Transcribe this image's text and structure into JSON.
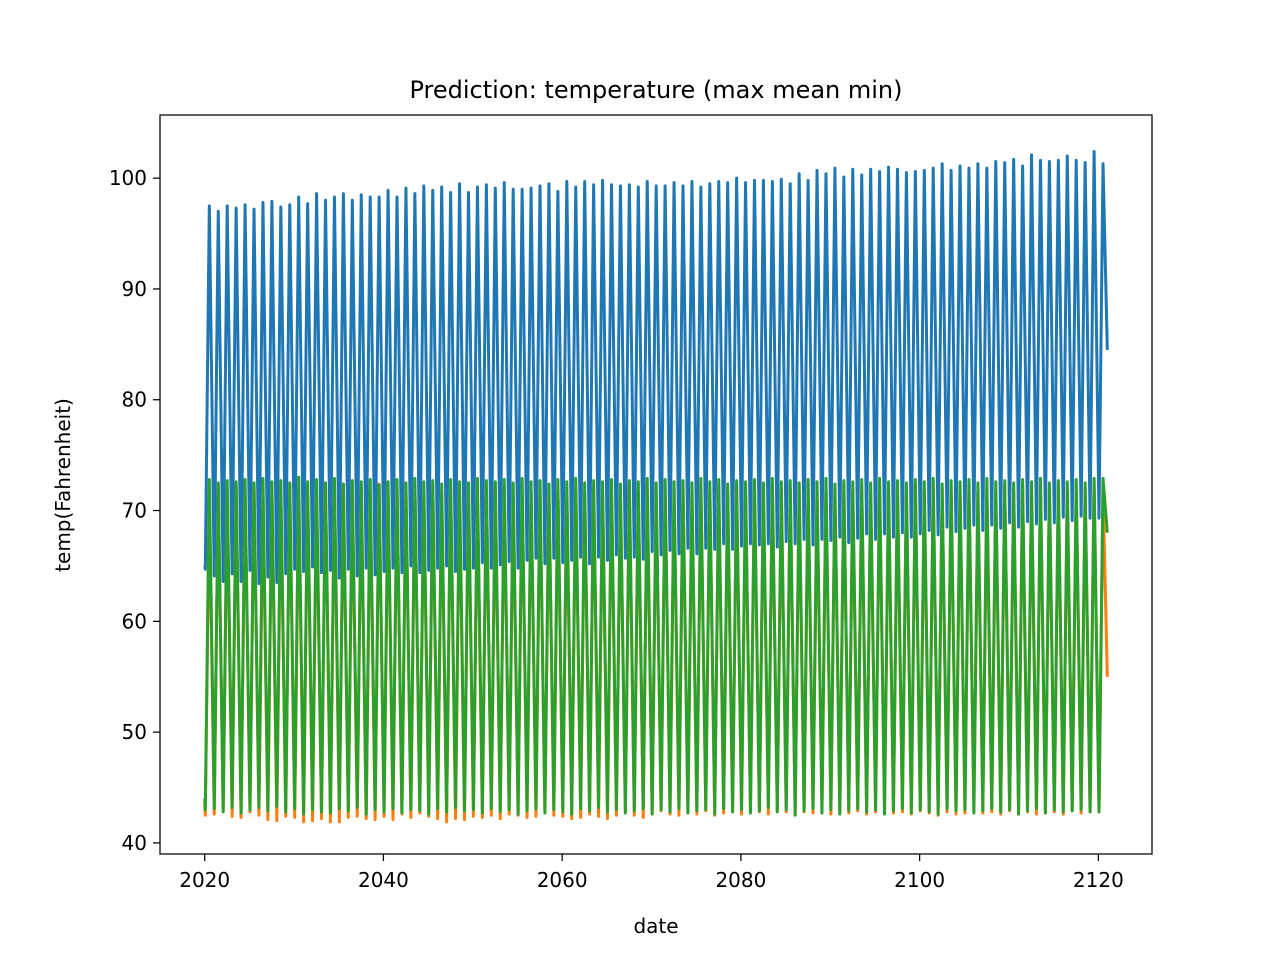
{
  "chart_data": {
    "type": "line",
    "title": "Prediction: temperature (max mean min)",
    "xlabel": "date",
    "ylabel": "temp(Fahrenheit)",
    "xlim": [
      2015,
      2126
    ],
    "ylim": [
      39,
      105.7
    ],
    "xticks": [
      2020,
      2040,
      2060,
      2080,
      2100,
      2120
    ],
    "yticks": [
      40,
      50,
      60,
      70,
      80,
      90,
      100
    ],
    "grid": false,
    "legend": "none",
    "x_range": [
      2020.0,
      2121.0
    ],
    "cycle_period_years": 1,
    "series": [
      {
        "color": "#1f77b4",
        "start_value": 65.0,
        "end_value": 84.5,
        "annual_peaks": [
          97.5,
          97.0,
          97.5,
          97.3,
          97.6,
          97.2,
          97.8,
          97.9,
          97.4,
          97.6,
          98.3,
          97.7,
          98.6,
          98.0,
          98.3,
          98.6,
          98.0,
          98.5,
          98.3,
          98.3,
          98.9,
          98.3,
          99.1,
          98.6,
          99.3,
          98.9,
          99.2,
          98.7,
          99.5,
          98.7,
          99.2,
          99.4,
          99.1,
          99.6,
          99.0,
          99.0,
          99.1,
          99.3,
          99.5,
          98.8,
          99.7,
          99.2,
          99.7,
          99.4,
          99.8,
          99.4,
          99.3,
          99.4,
          99.2,
          99.7,
          99.3,
          99.3,
          99.6,
          99.3,
          99.7,
          99.2,
          99.5,
          99.7,
          99.6,
          100.0,
          99.6,
          99.8,
          99.8,
          99.7,
          99.9,
          99.5,
          100.4,
          99.8,
          100.7,
          100.4,
          100.9,
          100.1,
          100.8,
          100.3,
          100.8,
          100.6,
          101.0,
          100.8,
          100.5,
          100.6,
          100.7,
          100.9,
          101.3,
          100.7,
          101.1,
          100.9,
          101.3,
          100.9,
          101.5,
          101.4,
          101.7,
          101.1,
          102.1,
          101.6,
          101.5,
          101.6,
          102.0,
          101.6,
          101.4,
          102.4,
          101.3
        ],
        "annual_troughs": [
          64.7,
          64.1,
          63.6,
          64.3,
          63.6,
          64.6,
          63.4,
          64.0,
          63.5,
          64.3,
          64.7,
          64.5,
          64.9,
          64.4,
          64.6,
          63.9,
          64.7,
          64.1,
          64.8,
          64.2,
          64.5,
          64.8,
          64.4,
          65.0,
          64.4,
          64.6,
          64.8,
          65.0,
          64.5,
          64.7,
          64.8,
          65.3,
          64.8,
          65.1,
          65.4,
          64.8,
          65.5,
          65.7,
          65.2,
          65.7,
          65.3,
          65.5,
          65.8,
          65.2,
          65.8,
          65.5,
          66.0,
          65.7,
          65.8,
          65.6,
          66.3,
          66.0,
          66.4,
          66.1,
          66.6,
          66.1,
          66.6,
          66.5,
          67.0,
          66.5,
          66.8,
          67.0,
          66.9,
          67.0,
          66.7,
          67.2,
          67.0,
          67.4,
          66.9,
          67.4,
          67.3,
          67.6,
          67.1,
          67.5,
          67.9,
          67.4,
          67.9,
          67.6,
          68.0,
          67.6,
          67.9,
          68.2,
          67.8,
          68.5,
          68.1,
          68.4,
          68.7,
          68.2,
          68.7,
          68.4,
          68.9,
          68.5,
          69.0,
          68.8,
          69.2,
          68.9,
          69.4,
          69.1,
          69.5,
          69.3
        ]
      },
      {
        "color": "#ff7f0e",
        "start_value": 43.5,
        "end_value": 55.0,
        "annual_peaks": [
          71.0,
          72.2,
          71.4,
          72.1,
          71.6,
          72.3,
          71.2,
          72.0,
          71.7,
          72.4,
          71.3,
          72.1,
          71.6,
          72.2,
          71.5,
          72.3,
          71.8,
          72.0,
          71.5,
          72.4,
          71.6,
          72.1,
          71.8,
          72.2,
          71.4,
          72.3,
          71.7,
          72.0,
          71.6,
          72.2,
          71.5,
          72.4,
          71.8,
          72.1,
          71.6,
          72.3,
          71.7,
          72.0,
          71.6,
          72.4,
          71.8,
          72.2,
          71.5,
          72.3,
          71.7,
          72.1,
          71.6,
          72.4,
          71.8,
          72.0,
          71.7,
          72.3,
          71.6,
          72.2,
          71.8,
          72.4,
          71.7,
          72.1,
          71.8,
          72.3,
          71.6,
          72.2,
          71.9,
          72.4,
          71.7,
          72.1,
          71.8,
          72.3,
          71.7,
          72.2,
          71.9,
          72.4,
          71.8,
          72.1,
          71.7,
          72.3,
          71.9,
          72.2,
          71.8,
          72.4,
          71.7,
          72.3,
          71.9,
          72.2,
          71.8,
          72.4,
          71.9,
          72.1,
          71.8,
          72.3,
          71.9,
          72.2,
          71.7,
          72.4,
          71.9,
          72.3,
          71.8,
          72.2,
          71.9,
          72.8,
          72.0
        ],
        "annual_troughs": [
          42.5,
          42.6,
          42.9,
          42.4,
          42.3,
          42.8,
          42.5,
          42.1,
          42.0,
          42.4,
          42.3,
          41.9,
          42.0,
          42.2,
          41.9,
          41.9,
          42.3,
          42.4,
          42.2,
          42.1,
          42.4,
          42.1,
          42.6,
          42.3,
          42.7,
          42.4,
          42.2,
          41.9,
          42.2,
          42.1,
          42.4,
          42.3,
          42.5,
          42.2,
          42.6,
          42.5,
          42.3,
          42.4,
          42.7,
          42.5,
          42.4,
          42.2,
          42.3,
          42.6,
          42.4,
          42.2,
          42.5,
          42.8,
          42.5,
          42.3,
          42.7,
          42.9,
          42.6,
          42.5,
          42.7,
          42.6,
          42.9,
          42.5,
          42.7,
          42.8,
          42.6,
          43.0,
          42.8,
          42.6,
          42.9,
          42.8,
          42.6,
          42.8,
          42.7,
          42.9,
          42.6,
          42.8,
          42.7,
          42.9,
          42.6,
          42.8,
          42.9,
          42.7,
          42.8,
          42.6,
          42.9,
          42.7,
          42.5,
          42.8,
          42.6,
          42.7,
          42.9,
          42.7,
          42.8,
          42.6,
          42.9,
          42.7,
          42.8,
          42.6,
          42.7,
          42.8,
          42.6,
          42.9,
          42.7,
          42.8
        ]
      },
      {
        "color": "#2ca02c",
        "start_value": 44.0,
        "end_value": 68.0,
        "annual_peaks": [
          72.8,
          72.5,
          72.7,
          72.6,
          72.8,
          72.5,
          72.9,
          72.6,
          72.7,
          72.5,
          73.0,
          72.6,
          72.8,
          72.5,
          72.9,
          72.4,
          72.7,
          72.6,
          72.8,
          72.3,
          72.6,
          72.8,
          72.5,
          72.9,
          72.6,
          72.7,
          72.4,
          72.8,
          72.6,
          72.5,
          72.9,
          72.7,
          72.6,
          72.8,
          72.5,
          72.9,
          72.6,
          72.7,
          72.4,
          72.8,
          72.6,
          72.9,
          72.5,
          72.7,
          72.6,
          72.8,
          72.4,
          72.7,
          72.6,
          72.9,
          72.5,
          72.8,
          72.6,
          72.7,
          72.5,
          72.9,
          72.6,
          72.8,
          72.4,
          72.7,
          72.6,
          72.8,
          72.5,
          72.9,
          72.6,
          72.7,
          72.5,
          72.8,
          72.6,
          72.9,
          72.4,
          72.7,
          72.6,
          72.8,
          72.5,
          72.9,
          72.6,
          72.7,
          72.5,
          72.8,
          72.6,
          72.9,
          72.4,
          72.7,
          72.6,
          72.8,
          72.5,
          72.9,
          72.6,
          72.7,
          72.5,
          72.8,
          72.6,
          72.9,
          72.5,
          72.7,
          72.6,
          72.8,
          72.5,
          72.9,
          72.9
        ],
        "annual_troughs": [
          43.0,
          43.1,
          42.8,
          43.2,
          42.7,
          43.0,
          43.2,
          42.9,
          43.3,
          42.8,
          43.1,
          42.6,
          43.0,
          42.8,
          42.7,
          43.1,
          42.9,
          43.2,
          42.6,
          43.0,
          42.8,
          43.1,
          42.7,
          43.0,
          42.9,
          42.6,
          43.1,
          42.8,
          43.2,
          42.9,
          43.0,
          42.7,
          43.1,
          42.8,
          43.0,
          42.6,
          42.9,
          43.1,
          42.7,
          43.0,
          42.8,
          42.6,
          43.1,
          42.9,
          43.2,
          42.8,
          43.0,
          42.7,
          42.9,
          43.1,
          42.6,
          43.0,
          42.8,
          43.1,
          42.7,
          42.9,
          43.0,
          42.6,
          43.1,
          42.8,
          43.0,
          42.7,
          42.9,
          43.2,
          42.8,
          43.0,
          42.5,
          42.9,
          43.1,
          42.7,
          43.0,
          42.6,
          42.9,
          43.1,
          42.8,
          43.0,
          42.6,
          42.9,
          43.1,
          42.7,
          43.0,
          42.8,
          42.6,
          43.1,
          42.9,
          43.0,
          42.7,
          42.9,
          43.1,
          42.8,
          43.0,
          42.6,
          42.9,
          43.1,
          42.7,
          43.0,
          42.8,
          42.9,
          43.0,
          42.8
        ]
      }
    ]
  }
}
